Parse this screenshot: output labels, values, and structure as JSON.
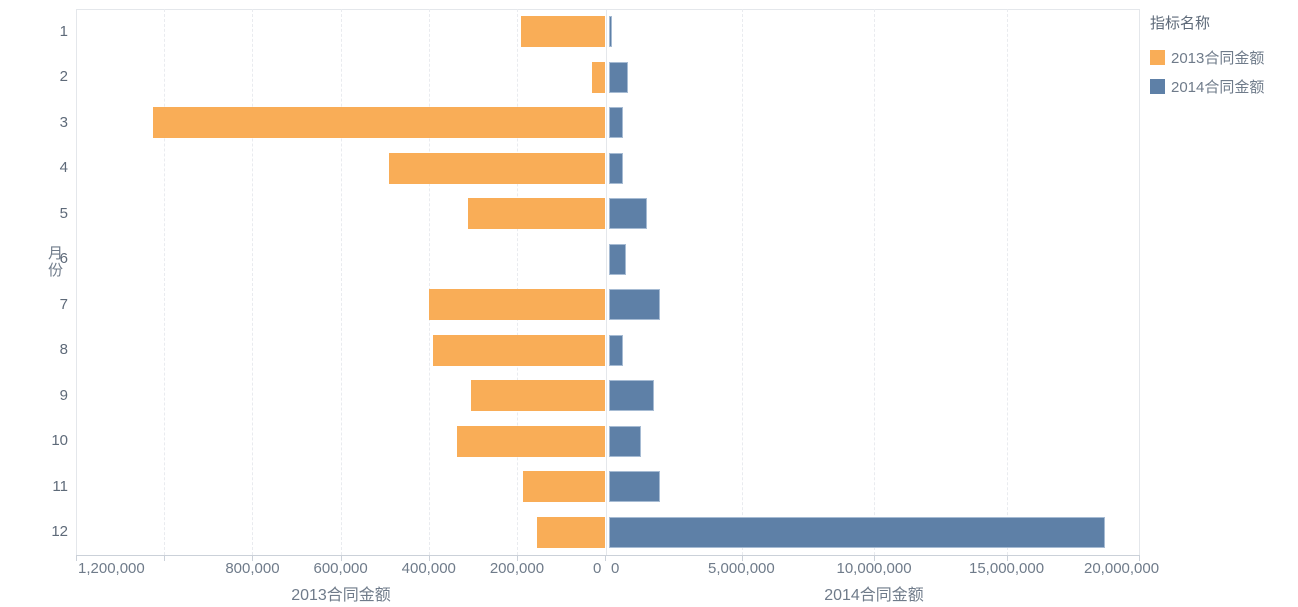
{
  "legend": {
    "title": "指标名称",
    "items": [
      {
        "label": "2013合同金额",
        "color": "#f9ad57"
      },
      {
        "label": "2014合同金额",
        "color": "#5e80a7"
      }
    ]
  },
  "chart_data": {
    "type": "bar",
    "orientation": "horizontal-diverging",
    "title": "",
    "ylabel": "月份",
    "grid": "vertical-dashed",
    "legend_position": "top-right",
    "categories": [
      "1",
      "2",
      "3",
      "4",
      "5",
      "6",
      "7",
      "8",
      "9",
      "10",
      "11",
      "12"
    ],
    "series": [
      {
        "name": "2013合同金额",
        "axis": "left",
        "color": "#f9ad57",
        "values": [
          190000,
          30000,
          1025000,
          490000,
          310000,
          0,
          400000,
          390000,
          305000,
          335000,
          185000,
          155000
        ]
      },
      {
        "name": "2014合同金额",
        "axis": "right",
        "color": "#5e80a7",
        "values": [
          130000,
          730000,
          515000,
          520000,
          1430000,
          630000,
          1920000,
          515000,
          1710000,
          1200000,
          1910000,
          18700000
        ]
      }
    ],
    "left_axis": {
      "title": "2013合同金额",
      "range": [
        0,
        1200000
      ],
      "reversed": true,
      "tick_labels": [
        {
          "value": 1200000,
          "label": "1,200,000"
        },
        {
          "value": 800000,
          "label": "800,000"
        },
        {
          "value": 600000,
          "label": "600,000"
        },
        {
          "value": 400000,
          "label": "400,000"
        },
        {
          "value": 200000,
          "label": "200,000"
        },
        {
          "value": 0,
          "label": "0"
        }
      ],
      "gridlines": [
        1000000,
        800000,
        600000,
        400000,
        200000
      ],
      "tick_marks": [
        1200000,
        1000000,
        800000,
        600000,
        400000,
        200000,
        0
      ]
    },
    "right_axis": {
      "title": "2014合同金额",
      "range": [
        0,
        20000000
      ],
      "reversed": false,
      "tick_labels": [
        {
          "value": 0,
          "label": "0"
        },
        {
          "value": 5000000,
          "label": "5,000,000"
        },
        {
          "value": 10000000,
          "label": "10,000,000"
        },
        {
          "value": 15000000,
          "label": "15,000,000"
        },
        {
          "value": 20000000,
          "label": "20,000,000"
        }
      ],
      "gridlines": [
        5000000,
        10000000,
        15000000
      ],
      "tick_marks": [
        5000000,
        10000000,
        15000000,
        20000000
      ]
    }
  }
}
